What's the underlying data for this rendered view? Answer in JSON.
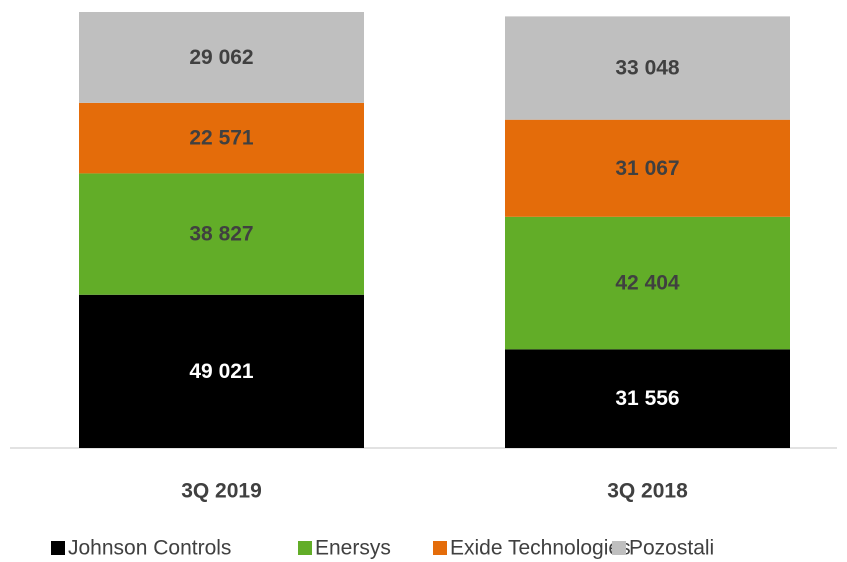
{
  "chart_data": {
    "type": "stacked_bar",
    "categories": [
      "3Q 2019",
      "3Q 2018"
    ],
    "series": [
      {
        "name": "Johnson Controls",
        "color": "#000000",
        "label_color": "#ffffff",
        "values": [
          49021,
          31556
        ],
        "value_labels": [
          "49 021",
          "31 556"
        ]
      },
      {
        "name": "Enersys",
        "color": "#62ad28",
        "label_color": "#404040",
        "values": [
          38827,
          42404
        ],
        "value_labels": [
          "38 827",
          "42 404"
        ]
      },
      {
        "name": "Exide Technologies",
        "color": "#e46c0a",
        "label_color": "#404040",
        "values": [
          22571,
          31067
        ],
        "value_labels": [
          "22 571",
          "31 067"
        ]
      },
      {
        "name": "Pozostali",
        "color": "#bfbfbf",
        "label_color": "#404040",
        "values": [
          29062,
          33048
        ],
        "value_labels": [
          "29 062",
          "33 048"
        ]
      }
    ],
    "legend": "bottom"
  }
}
